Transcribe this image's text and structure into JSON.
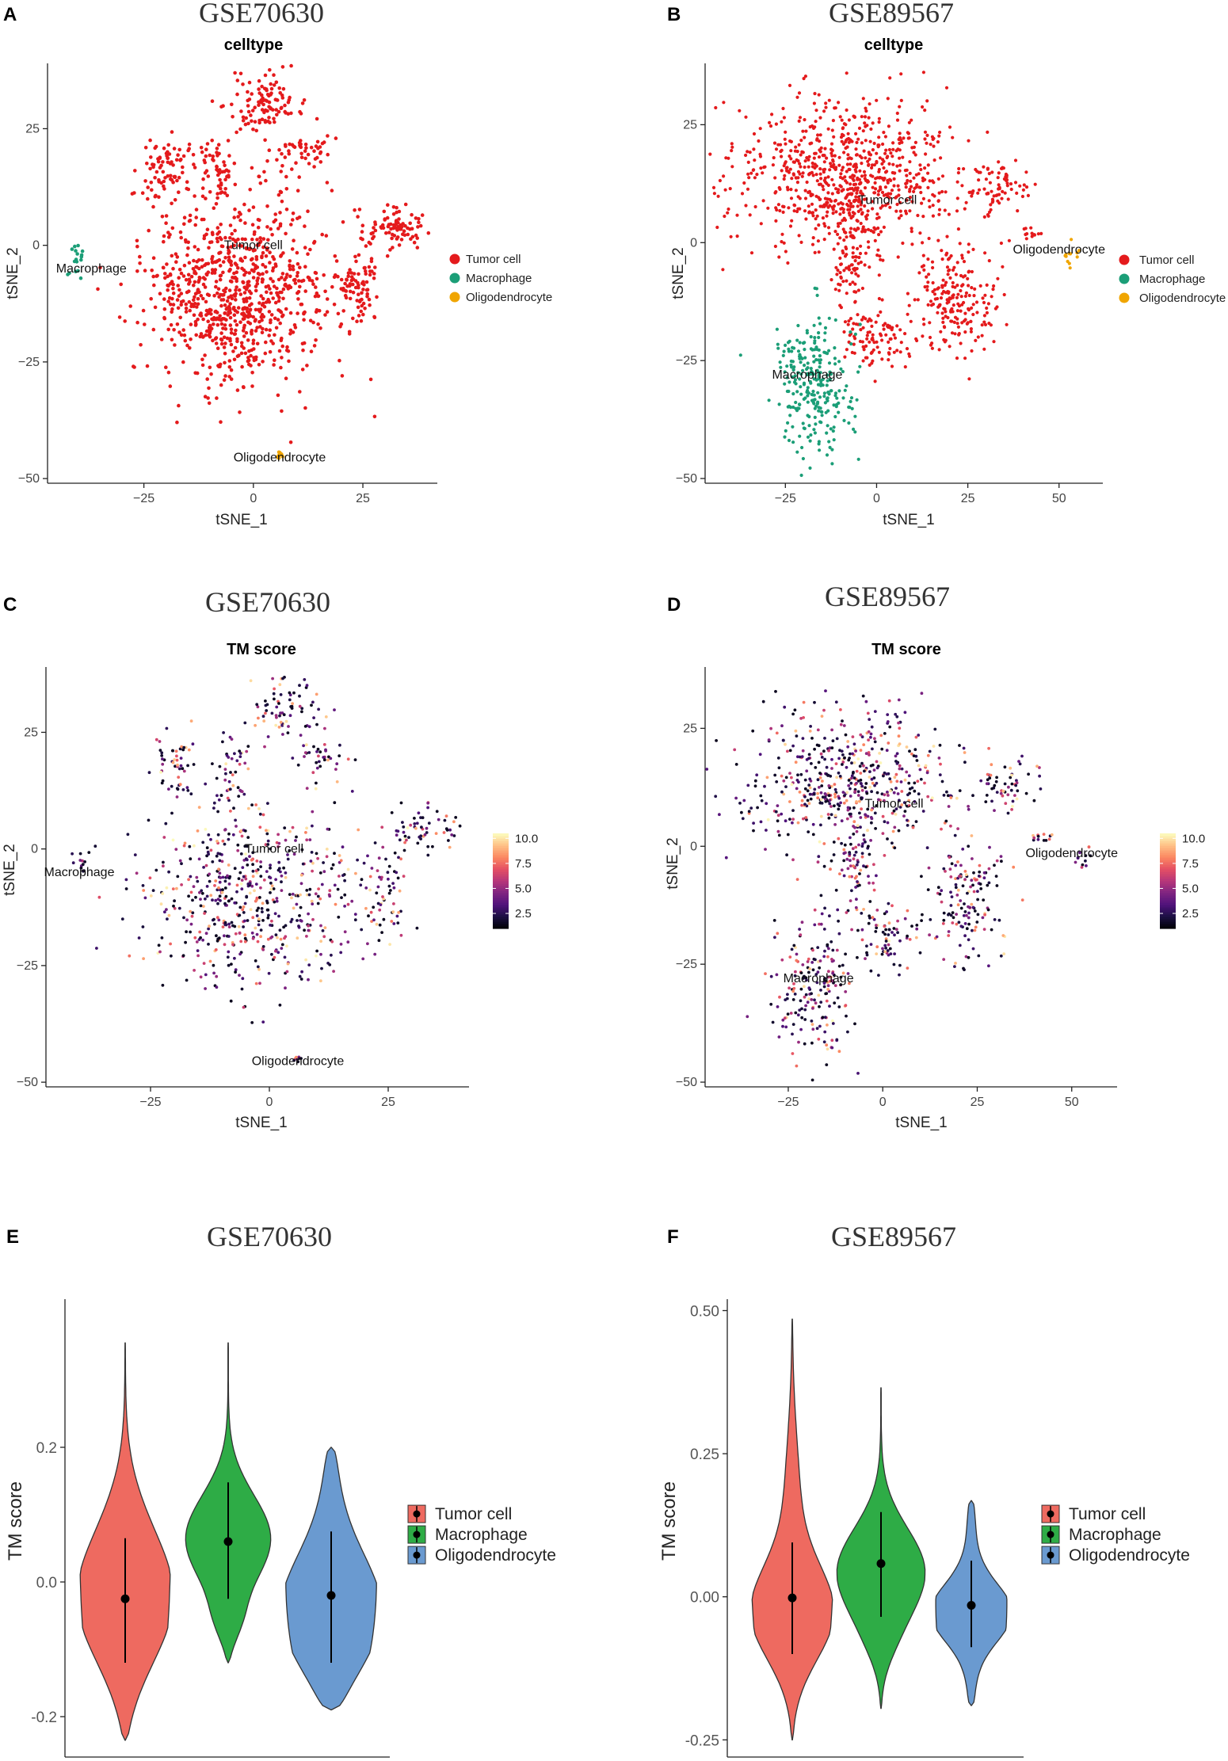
{
  "colors": {
    "tumor": "#e41a1c",
    "macrophage": "#1b9e77",
    "oligo": "#f0a500",
    "violin_tumor": "#ee6a60",
    "violin_macrophage": "#2eac46",
    "violin_oligo": "#6a9ad0"
  },
  "chart_data": [
    {
      "panel": "A",
      "dataset_title": "GSE70630",
      "title": "celltype",
      "type": "scatter",
      "xlabel": "tSNE_1",
      "ylabel": "tSNE_2",
      "xlim": [
        -47,
        42
      ],
      "ylim": [
        -51,
        39
      ],
      "xticks": [
        -25,
        0,
        25
      ],
      "yticks": [
        -50,
        -25,
        0,
        25
      ],
      "xtick_labels": [
        "−25",
        "0",
        "25"
      ],
      "ytick_labels": [
        "−50",
        "−25",
        "0",
        "25"
      ],
      "color_by": "celltype",
      "legend": [
        "Tumor cell",
        "Macrophage",
        "Oligodendrocyte"
      ],
      "labels": [
        {
          "text": "Tumor cell",
          "x": 0,
          "y": 0
        },
        {
          "text": "Macrophage",
          "x": -37,
          "y": -5
        },
        {
          "text": "Oligodendrocyte",
          "x": 6,
          "y": -45.5
        }
      ],
      "clusters": [
        {
          "celltype": "Tumor cell",
          "cx": -3,
          "cy": -10,
          "sx": 13,
          "sy": 12
        },
        {
          "celltype": "Tumor cell",
          "cx": 3,
          "cy": 30,
          "sx": 5,
          "sy": 4
        },
        {
          "celltype": "Tumor cell",
          "cx": -20,
          "cy": 17,
          "sx": 3.5,
          "sy": 4
        },
        {
          "celltype": "Tumor cell",
          "cx": 11,
          "cy": 20,
          "sx": 4,
          "sy": 2.2
        },
        {
          "celltype": "Tumor cell",
          "cx": 32,
          "cy": 4,
          "sx": 5,
          "sy": 3
        },
        {
          "celltype": "Tumor cell",
          "cx": 24,
          "cy": -9,
          "sx": 3,
          "sy": 5
        },
        {
          "celltype": "Tumor cell",
          "cx": -8,
          "cy": 16,
          "sx": 2.5,
          "sy": 4
        },
        {
          "celltype": "Macrophage",
          "cx": -40,
          "cy": -3,
          "sx": 1.2,
          "sy": 2.5
        },
        {
          "celltype": "Oligodendrocyte",
          "cx": 6,
          "cy": -45,
          "sx": 0.6,
          "sy": 0.4
        }
      ]
    },
    {
      "panel": "B",
      "dataset_title": "GSE89567",
      "title": "celltype",
      "type": "scatter",
      "xlabel": "tSNE_1",
      "ylabel": "tSNE_2",
      "xlim": [
        -47,
        62
      ],
      "ylim": [
        -51,
        38
      ],
      "xticks": [
        -25,
        0,
        25,
        50
      ],
      "yticks": [
        -50,
        -25,
        0,
        25
      ],
      "xtick_labels": [
        "−25",
        "0",
        "25",
        "50"
      ],
      "ytick_labels": [
        "−50",
        "−25",
        "0",
        "25"
      ],
      "color_by": "celltype",
      "legend": [
        "Tumor cell",
        "Macrophage",
        "Oligodendrocyte"
      ],
      "labels": [
        {
          "text": "Tumor cell",
          "x": 3,
          "y": 9
        },
        {
          "text": "Macrophage",
          "x": -19,
          "y": -28
        },
        {
          "text": "Oligodendrocyte",
          "x": 50,
          "y": -1.5
        }
      ],
      "clusters": [
        {
          "celltype": "Tumor cell",
          "cx": -8,
          "cy": 14,
          "sx": 17,
          "sy": 9
        },
        {
          "celltype": "Tumor cell",
          "cx": 22,
          "cy": -12,
          "sx": 6,
          "sy": 7
        },
        {
          "celltype": "Tumor cell",
          "cx": 0,
          "cy": -20,
          "sx": 5,
          "sy": 4
        },
        {
          "celltype": "Tumor cell",
          "cx": -7,
          "cy": -3,
          "sx": 3,
          "sy": 7
        },
        {
          "celltype": "Tumor cell",
          "cx": 33,
          "cy": 12,
          "sx": 5,
          "sy": 3
        },
        {
          "celltype": "Tumor cell",
          "cx": 42,
          "cy": 2,
          "sx": 2,
          "sy": 1
        },
        {
          "celltype": "Macrophage",
          "cx": -18,
          "cy": -30,
          "sx": 6,
          "sy": 9
        },
        {
          "celltype": "Oligodendrocyte",
          "cx": 53,
          "cy": -3,
          "sx": 1.5,
          "sy": 1.5
        }
      ]
    },
    {
      "panel": "C",
      "dataset_title": "GSE70630",
      "title": "TM score",
      "type": "scatter",
      "xlabel": "tSNE_1",
      "ylabel": "tSNE_2",
      "xlim": [
        -47,
        42
      ],
      "ylim": [
        -51,
        39
      ],
      "xticks": [
        -25,
        0,
        25
      ],
      "yticks": [
        -50,
        -25,
        0,
        25
      ],
      "xtick_labels": [
        "−25",
        "0",
        "25"
      ],
      "ytick_labels": [
        "−50",
        "−25",
        "0",
        "25"
      ],
      "color_by": "TM score",
      "colorbar": {
        "ticks": [
          2.5,
          5.0,
          7.5,
          10.0
        ],
        "tick_labels": [
          "2.5",
          "5.0",
          "7.5",
          "10.0"
        ],
        "range": [
          1,
          10.5
        ]
      },
      "labels": [
        {
          "text": "Tumor cell",
          "x": 1,
          "y": 0
        },
        {
          "text": "Macrophage",
          "x": -40,
          "y": -5
        },
        {
          "text": "Oligodendrocyte",
          "x": 6,
          "y": -45.5
        }
      ],
      "clusters": [
        {
          "cx": -3,
          "cy": -10,
          "sx": 13,
          "sy": 12
        },
        {
          "cx": 3,
          "cy": 30,
          "sx": 5,
          "sy": 4
        },
        {
          "cx": -20,
          "cy": 17,
          "sx": 3.5,
          "sy": 4
        },
        {
          "cx": 11,
          "cy": 20,
          "sx": 4,
          "sy": 2.2
        },
        {
          "cx": 32,
          "cy": 4,
          "sx": 5,
          "sy": 3
        },
        {
          "cx": 24,
          "cy": -9,
          "sx": 3,
          "sy": 5
        },
        {
          "cx": -8,
          "cy": 16,
          "sx": 2.5,
          "sy": 4
        },
        {
          "cx": -40,
          "cy": -3,
          "sx": 1.2,
          "sy": 2.5
        },
        {
          "cx": 6,
          "cy": -45,
          "sx": 0.6,
          "sy": 0.4
        }
      ]
    },
    {
      "panel": "D",
      "dataset_title": "GSE89567",
      "title": "TM score",
      "type": "scatter",
      "xlabel": "tSNE_1",
      "ylabel": "tSNE_2",
      "xlim": [
        -47,
        62
      ],
      "ylim": [
        -51,
        38
      ],
      "xticks": [
        -25,
        0,
        25,
        50
      ],
      "yticks": [
        -50,
        -25,
        0,
        25
      ],
      "xtick_labels": [
        "−25",
        "0",
        "25",
        "50"
      ],
      "ytick_labels": [
        "−50",
        "−25",
        "0",
        "25"
      ],
      "color_by": "TM score",
      "colorbar": {
        "ticks": [
          2.5,
          5.0,
          7.5,
          10.0
        ],
        "tick_labels": [
          "2.5",
          "5.0",
          "7.5",
          "10.0"
        ],
        "range": [
          1,
          10.5
        ]
      },
      "labels": [
        {
          "text": "Tumor cell",
          "x": 3,
          "y": 9
        },
        {
          "text": "Oligodendrocyte",
          "x": 50,
          "y": -1.5
        },
        {
          "text": "Macrophage",
          "x": -17,
          "y": -28
        }
      ],
      "clusters": [
        {
          "cx": -8,
          "cy": 14,
          "sx": 17,
          "sy": 9
        },
        {
          "cx": 22,
          "cy": -12,
          "sx": 6,
          "sy": 7
        },
        {
          "cx": 0,
          "cy": -20,
          "sx": 5,
          "sy": 4
        },
        {
          "cx": -7,
          "cy": -3,
          "sx": 3,
          "sy": 7
        },
        {
          "cx": 33,
          "cy": 12,
          "sx": 5,
          "sy": 3
        },
        {
          "cx": 42,
          "cy": 2,
          "sx": 2,
          "sy": 1
        },
        {
          "cx": -18,
          "cy": -30,
          "sx": 6,
          "sy": 9
        },
        {
          "cx": 53,
          "cy": -3,
          "sx": 1.5,
          "sy": 1.5
        }
      ]
    },
    {
      "panel": "E",
      "dataset_title": "GSE70630",
      "type": "violin",
      "xlabel": "",
      "ylabel": "TM score",
      "ylim": [
        -0.26,
        0.42
      ],
      "yticks": [
        -0.2,
        0.0,
        0.2
      ],
      "ytick_labels": [
        "-0.2",
        "0.0",
        "0.2"
      ],
      "legend": [
        "Tumor cell",
        "Macrophage",
        "Oligodendrocyte"
      ],
      "violins": [
        {
          "name": "Tumor cell",
          "min": -0.235,
          "max": 0.355,
          "median": -0.025,
          "ci_low": -0.12,
          "ci_high": 0.065
        },
        {
          "name": "Macrophage",
          "min": -0.12,
          "max": 0.355,
          "median": 0.06,
          "ci_low": -0.025,
          "ci_high": 0.148
        },
        {
          "name": "Oligodendrocyte",
          "min": -0.19,
          "max": 0.2,
          "median": -0.02,
          "ci_low": -0.12,
          "ci_high": 0.075
        }
      ]
    },
    {
      "panel": "F",
      "dataset_title": "GSE89567",
      "type": "violin",
      "xlabel": "",
      "ylabel": "TM score",
      "ylim": [
        -0.28,
        0.52
      ],
      "yticks": [
        -0.25,
        0.0,
        0.25,
        0.5
      ],
      "ytick_labels": [
        "-0.25",
        "0.00",
        "0.25",
        "0.50"
      ],
      "legend": [
        "Tumor cell",
        "Macrophage",
        "Oligodendrocyte"
      ],
      "violins": [
        {
          "name": "Tumor cell",
          "min": -0.25,
          "max": 0.485,
          "median": -0.002,
          "ci_low": -0.1,
          "ci_high": 0.095
        },
        {
          "name": "Macrophage",
          "min": -0.195,
          "max": 0.365,
          "median": 0.058,
          "ci_low": -0.035,
          "ci_high": 0.148
        },
        {
          "name": "Oligodendrocyte",
          "min": -0.19,
          "max": 0.168,
          "median": -0.015,
          "ci_low": -0.088,
          "ci_high": 0.063
        }
      ]
    }
  ]
}
